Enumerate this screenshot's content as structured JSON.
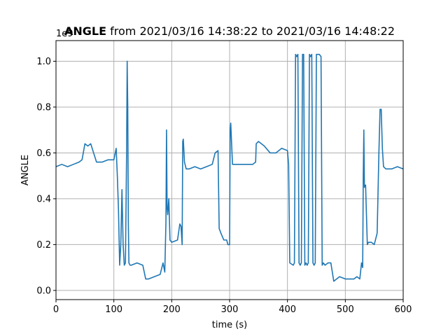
{
  "chart_data": {
    "type": "line",
    "title_bold": "ANGLE",
    "title_rest": " from 2021/03/16 14:38:22 to 2021/03/16 14:48:22",
    "xlabel": "time (s)",
    "ylabel": "ANGLE",
    "y_offset_label": "1e9",
    "xlim": [
      0,
      600
    ],
    "ylim": [
      -0.04,
      1.09
    ],
    "y_scale_factor": 1000000000,
    "grid": true,
    "x_ticks": [
      0,
      100,
      200,
      300,
      400,
      500,
      600
    ],
    "x_tick_labels": [
      "0",
      "100",
      "200",
      "300",
      "400",
      "500",
      "600"
    ],
    "y_ticks": [
      0.0,
      0.2,
      0.4,
      0.6,
      0.8,
      1.0
    ],
    "y_tick_labels": [
      "0.0",
      "0.2",
      "0.4",
      "0.6",
      "0.8",
      "1.0"
    ],
    "series": [
      {
        "color": "#1f77b4",
        "x": [
          0,
          10,
          20,
          30,
          40,
          45,
          50,
          55,
          60,
          65,
          70,
          80,
          90,
          100,
          104,
          106,
          108,
          110,
          112,
          114,
          116,
          118,
          120,
          122,
          123,
          124,
          125,
          126,
          128,
          130,
          140,
          150,
          155,
          160,
          170,
          180,
          185,
          188,
          190,
          191,
          192,
          193,
          195,
          197,
          200,
          210,
          214,
          216,
          218,
          219,
          220,
          222,
          225,
          230,
          240,
          250,
          260,
          270,
          275,
          280,
          282,
          285,
          290,
          295,
          297,
          300,
          301,
          302,
          305,
          310,
          320,
          330,
          340,
          345,
          346,
          350,
          360,
          370,
          380,
          390,
          400,
          402,
          404,
          410,
          412,
          414,
          416,
          418,
          420,
          422,
          424,
          426,
          428,
          430,
          432,
          434,
          436,
          438,
          440,
          442,
          444,
          446,
          448,
          450,
          452,
          455,
          458,
          460,
          462,
          465,
          470,
          475,
          480,
          490,
          500,
          510,
          515,
          520,
          525,
          528,
          530,
          531,
          532,
          533,
          535,
          538,
          540,
          545,
          550,
          555,
          558,
          560,
          562,
          564,
          566,
          570,
          580,
          590,
          600
        ],
        "y": [
          0.54,
          0.55,
          0.54,
          0.55,
          0.56,
          0.57,
          0.64,
          0.63,
          0.64,
          0.6,
          0.56,
          0.56,
          0.57,
          0.57,
          0.62,
          0.5,
          0.35,
          0.11,
          0.2,
          0.44,
          0.2,
          0.11,
          0.12,
          0.6,
          1.0,
          0.8,
          0.3,
          0.12,
          0.11,
          0.11,
          0.12,
          0.11,
          0.05,
          0.05,
          0.06,
          0.07,
          0.12,
          0.08,
          0.3,
          0.7,
          0.36,
          0.33,
          0.4,
          0.22,
          0.21,
          0.22,
          0.29,
          0.28,
          0.2,
          0.65,
          0.66,
          0.56,
          0.53,
          0.53,
          0.54,
          0.53,
          0.54,
          0.55,
          0.6,
          0.61,
          0.27,
          0.25,
          0.22,
          0.22,
          0.2,
          0.2,
          0.7,
          0.73,
          0.55,
          0.55,
          0.55,
          0.55,
          0.55,
          0.56,
          0.64,
          0.65,
          0.63,
          0.6,
          0.6,
          0.62,
          0.61,
          0.55,
          0.12,
          0.11,
          0.12,
          1.03,
          1.02,
          1.03,
          0.12,
          0.11,
          0.12,
          1.03,
          1.03,
          0.11,
          0.12,
          0.11,
          0.12,
          1.03,
          1.02,
          1.03,
          0.12,
          0.11,
          0.12,
          1.03,
          1.03,
          1.03,
          1.02,
          0.11,
          0.12,
          0.11,
          0.12,
          0.12,
          0.04,
          0.06,
          0.05,
          0.05,
          0.05,
          0.06,
          0.05,
          0.12,
          0.1,
          0.5,
          0.7,
          0.45,
          0.46,
          0.2,
          0.21,
          0.21,
          0.2,
          0.25,
          0.6,
          0.79,
          0.79,
          0.62,
          0.54,
          0.53,
          0.53,
          0.54,
          0.53
        ]
      }
    ]
  }
}
